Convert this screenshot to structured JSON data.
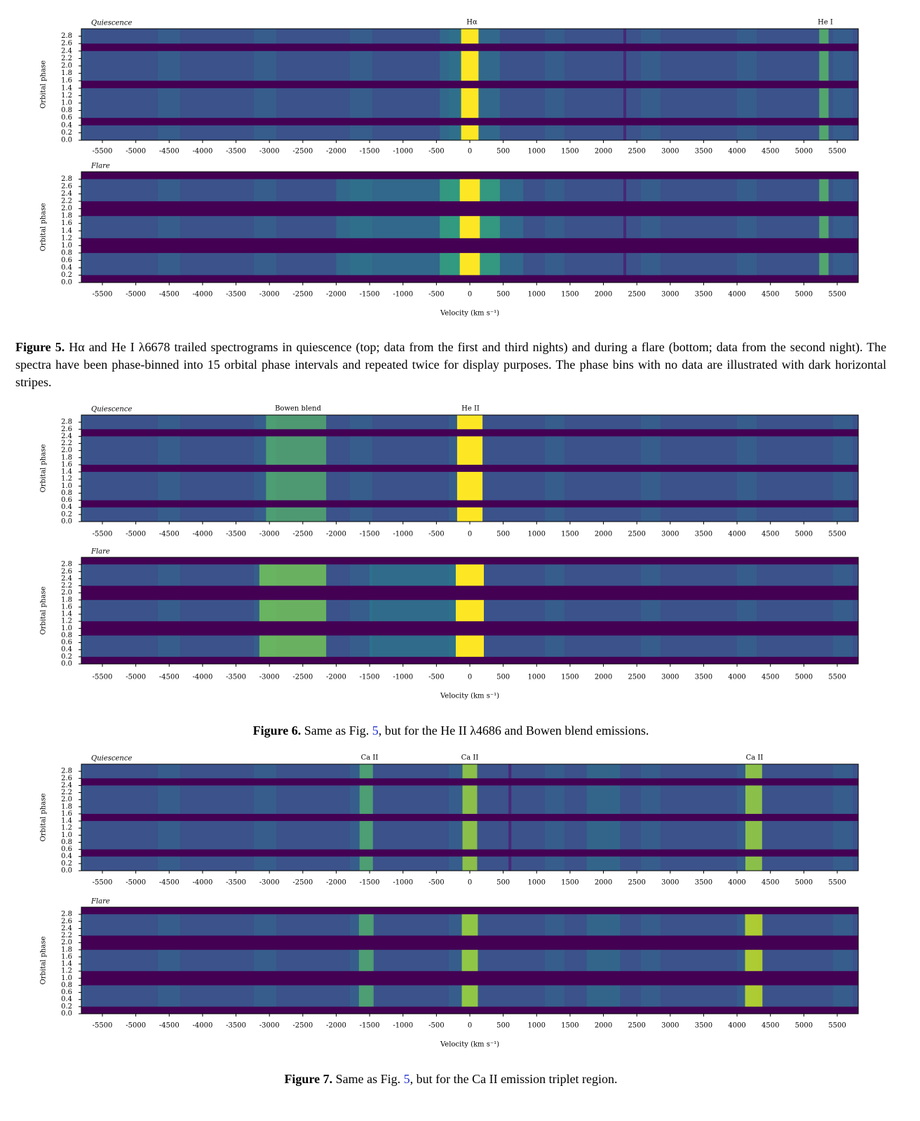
{
  "axes": {
    "xticks": [
      -5500,
      -5000,
      -4500,
      -4000,
      -3500,
      -3000,
      -2500,
      -2000,
      -1500,
      -1000,
      -500,
      0,
      500,
      1000,
      1500,
      2000,
      2500,
      3000,
      3500,
      4000,
      4500,
      5000,
      5500
    ],
    "yticks": [
      {
        "value": 0,
        "label": "0.0"
      },
      {
        "value": 0.2,
        "label": "0.2"
      },
      {
        "value": 0.4,
        "label": "0.4"
      },
      {
        "value": 0.6,
        "label": "0.6"
      },
      {
        "value": 0.8,
        "label": "0.8"
      },
      {
        "value": 1,
        "label": "1.0"
      },
      {
        "value": 1.2,
        "label": "1.2"
      },
      {
        "value": 1.4,
        "label": "1.4"
      },
      {
        "value": 1.6,
        "label": "1.6"
      },
      {
        "value": 1.8,
        "label": "1.8"
      },
      {
        "value": 2,
        "label": "2.0"
      },
      {
        "value": 2.2,
        "label": "2.2"
      },
      {
        "value": 2.4,
        "label": "2.4"
      },
      {
        "value": 2.6,
        "label": "2.6"
      },
      {
        "value": 2.8,
        "label": "2.8"
      }
    ],
    "ylabel": "Orbital phase",
    "xlabel": "Velocity (km s⁻¹)"
  },
  "figures": [
    {
      "panels": [
        {
          "label": "Quiescence",
          "lines": [
            "Hα",
            "He I"
          ]
        },
        {
          "label": "Flare"
        }
      ],
      "caption": {
        "label": "Figure 5.",
        "pre": "Hα and He I λ6678 trailed spectrograms in quiescence (top; data from the first and third nights) and during a flare (bottom; data from the second night). The spectra have been phase-binned into 15 orbital phase intervals and repeated twice for display purposes. The phase bins with no data are illustrated with dark horizontal stripes."
      }
    },
    {
      "panels": [
        {
          "label": "Quiescence",
          "lines": [
            "Bowen blend",
            "He II"
          ]
        },
        {
          "label": "Flare"
        }
      ],
      "caption": {
        "label": "Figure 6.",
        "pre": "Same as Fig.",
        "ref": "5",
        "post": ", but for the He II λ4686 and Bowen blend emissions."
      }
    },
    {
      "panels": [
        {
          "label": "Quiescence",
          "lines": [
            "Ca II",
            "Ca II",
            "Ca II"
          ]
        },
        {
          "label": "Flare"
        }
      ],
      "caption": {
        "label": "Figure 7.",
        "pre": "Same as Fig.",
        "ref": "5",
        "post": ", but for the Ca II emission triplet region."
      }
    }
  ]
}
